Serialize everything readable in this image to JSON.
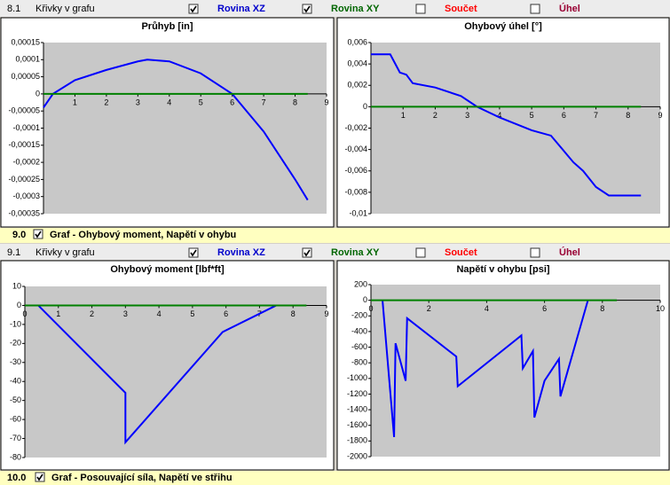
{
  "sections": [
    {
      "number": "8.1",
      "label": "Křivky v grafu",
      "options": [
        {
          "label": "Rovina XZ",
          "checked": true,
          "color": "#0000cc"
        },
        {
          "label": "Rovina XY",
          "checked": true,
          "color": "#006600"
        },
        {
          "label": "Součet",
          "checked": false,
          "color": "#ff0000"
        },
        {
          "label": "Úhel",
          "checked": false,
          "color": "#990033"
        }
      ]
    },
    {
      "number": "9.1",
      "label": "Křivky v grafu",
      "options": [
        {
          "label": "Rovina XZ",
          "checked": true,
          "color": "#0000cc"
        },
        {
          "label": "Rovina XY",
          "checked": true,
          "color": "#006600"
        },
        {
          "label": "Součet",
          "checked": false,
          "color": "#ff0000"
        },
        {
          "label": "Úhel",
          "checked": false,
          "color": "#990033"
        }
      ]
    }
  ],
  "headers": [
    {
      "number": "9.0",
      "label": "Graf - Ohybový moment, Napětí v ohybu",
      "checked": true
    },
    {
      "number": "10.0",
      "label": "Graf - Posouvající síla, Napětí ve střihu",
      "checked": true
    }
  ],
  "chart_data": [
    {
      "type": "line",
      "title": "Průhyb [in]",
      "xlim": [
        0,
        9
      ],
      "xticks": [
        1,
        2,
        3,
        4,
        5,
        6,
        7,
        8,
        9
      ],
      "ylim": [
        -0.00035,
        0.00015
      ],
      "yticks": [
        {
          "value": 0.00015,
          "label": "0,00015"
        },
        {
          "value": 0.0001,
          "label": "0,0001"
        },
        {
          "value": 5e-05,
          "label": "0,00005"
        },
        {
          "value": 0,
          "label": "0"
        },
        {
          "value": -5e-05,
          "label": "-0,00005"
        },
        {
          "value": -0.0001,
          "label": "-0,0001"
        },
        {
          "value": -0.00015,
          "label": "-0,00015"
        },
        {
          "value": -0.0002,
          "label": "-0,0002"
        },
        {
          "value": -0.00025,
          "label": "-0,00025"
        },
        {
          "value": -0.0003,
          "label": "-0,0003"
        },
        {
          "value": -0.00035,
          "label": "-0,00035"
        }
      ],
      "grid": false,
      "series": [
        {
          "color": "#0000ff",
          "x": [
            0,
            0.3,
            1,
            2,
            3,
            3.3,
            4,
            5,
            6,
            7,
            8,
            8.4
          ],
          "values": [
            -4e-05,
            0,
            4e-05,
            7e-05,
            9.5e-05,
            0.0001,
            9.5e-05,
            6e-05,
            0,
            -0.00011,
            -0.00025,
            -0.00031
          ]
        },
        {
          "color": "#008000",
          "x": [
            0,
            8.4
          ],
          "values": [
            0,
            0
          ]
        }
      ]
    },
    {
      "type": "line",
      "title": "Ohybový úhel [°]",
      "xlim": [
        0,
        9
      ],
      "xticks": [
        1,
        2,
        3,
        4,
        5,
        6,
        7,
        8,
        9
      ],
      "ylim": [
        -0.01,
        0.006
      ],
      "yticks": [
        {
          "value": 0.006,
          "label": "0,006"
        },
        {
          "value": 0.004,
          "label": "0,004"
        },
        {
          "value": 0.002,
          "label": "0,002"
        },
        0,
        {
          "value": -0.002,
          "label": "-0,002"
        },
        {
          "value": -0.004,
          "label": "-0,004"
        },
        {
          "value": -0.006,
          "label": "-0,006"
        },
        {
          "value": -0.008,
          "label": "-0,008"
        },
        {
          "value": -0.01,
          "label": "-0,01"
        }
      ],
      "grid": false,
      "series": [
        {
          "color": "#0000ff",
          "x": [
            0,
            0.6,
            0.9,
            1.1,
            1.3,
            2,
            2.8,
            3.3,
            4,
            5,
            5.6,
            6.3,
            6.6,
            7,
            7.4,
            8.4
          ],
          "values": [
            0.0049,
            0.0049,
            0.0032,
            0.003,
            0.0022,
            0.0018,
            0.001,
            0,
            -0.001,
            -0.0022,
            -0.0027,
            -0.0052,
            -0.006,
            -0.0075,
            -0.0083,
            -0.0083
          ]
        },
        {
          "color": "#008000",
          "x": [
            0,
            8.4
          ],
          "values": [
            0,
            0
          ]
        }
      ]
    },
    {
      "type": "line",
      "title": "Ohybový moment [lbf*ft]",
      "xlim": [
        0,
        9
      ],
      "xticks": [
        0,
        1,
        2,
        3,
        4,
        5,
        6,
        7,
        8,
        9
      ],
      "ylim": [
        -80,
        10
      ],
      "yticks": [
        10,
        0,
        -10,
        -20,
        -30,
        -40,
        -50,
        -60,
        -70,
        -80
      ],
      "grid": false,
      "series": [
        {
          "color": "#0000ff",
          "x": [
            0.4,
            3,
            3,
            5.9,
            7.5
          ],
          "values": [
            0,
            -46,
            -72,
            -14,
            0
          ]
        },
        {
          "color": "#008000",
          "x": [
            0,
            8.4
          ],
          "values": [
            0,
            0
          ]
        }
      ]
    },
    {
      "type": "line",
      "title": "Napětí v ohybu [psi]",
      "xlim": [
        0,
        10
      ],
      "xticks": [
        0,
        2,
        4,
        6,
        8,
        10
      ],
      "ylim": [
        -2000,
        200
      ],
      "yticks": [
        200,
        0,
        -200,
        -400,
        -600,
        -800,
        -1000,
        -1200,
        -1400,
        -1600,
        -1800,
        -2000
      ],
      "grid": false,
      "series": [
        {
          "color": "#0000ff",
          "x": [
            0.4,
            0.8,
            0.85,
            1.2,
            1.25,
            2.95,
            3,
            5.2,
            5.25,
            5.6,
            5.65,
            6,
            6.5,
            6.55,
            7.5
          ],
          "values": [
            0,
            -1750,
            -550,
            -1030,
            -230,
            -720,
            -1100,
            -450,
            -870,
            -650,
            -1500,
            -1030,
            -750,
            -1230,
            0
          ]
        },
        {
          "color": "#008000",
          "x": [
            0,
            8.5
          ],
          "values": [
            0,
            0
          ]
        }
      ]
    }
  ]
}
